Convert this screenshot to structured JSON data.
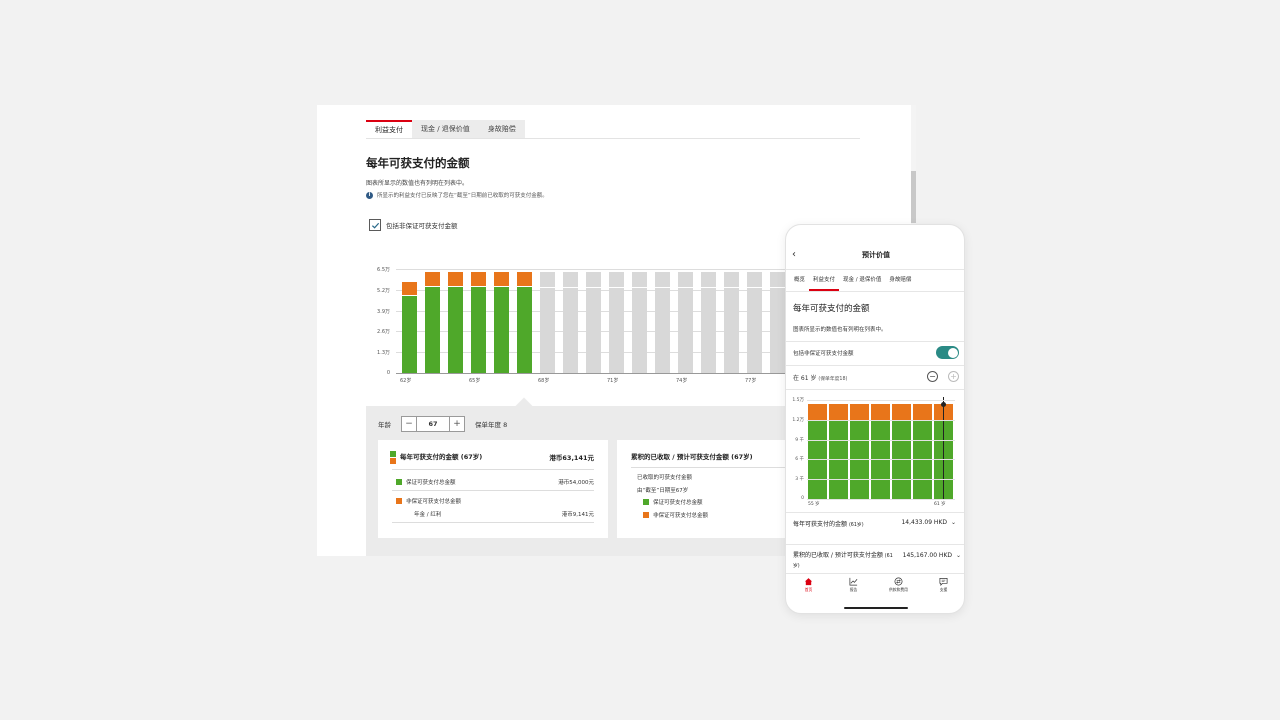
{
  "desktop": {
    "tabs": [
      "利益支付",
      "现金 / 退保价值",
      "身故赔偿"
    ],
    "title": "每年可获支付的金额",
    "subtitle": "图表所显示的数值也有列明在列表中。",
    "info": "所显示的利益支付已反映了您在“截至”日期前已收取的可获支付金额。",
    "checkbox_label": "包括非保证可获支付金额",
    "chart": {
      "y_ticks": [
        "6.5万",
        "5.2万",
        "3.9万",
        "2.6万",
        "1.3万",
        "0"
      ],
      "x_ticks": [
        "62岁",
        "65岁",
        "68岁",
        "71岁",
        "74岁",
        "77岁"
      ]
    },
    "age_label": "年龄",
    "age_value": "67",
    "policy_year": "保单年度 8",
    "card1": {
      "title": "每年可获支付的金额 (67岁)",
      "total": "港币63,141元",
      "guaranteed_label": "保证可获支付总金额",
      "guaranteed_value": "港币54,000元",
      "nonguaranteed_label": "非保证可获支付总金额",
      "annuity_label": "年金 / 红利",
      "annuity_value": "港币9,141元"
    },
    "card2": {
      "title": "累积的已收取 / 预计可获支付金额 (67岁)",
      "received_label": "已收取的可获支付金额",
      "until_label": "由“截至”日期至67岁",
      "guaranteed_label": "保证可获支付总金额",
      "nonguaranteed_label": "非保证可获支付总金额"
    }
  },
  "chart_data": [
    {
      "type": "bar",
      "stacked": true,
      "categories": [
        "62岁",
        "63岁",
        "64岁",
        "65岁",
        "66岁",
        "67岁",
        "68岁",
        "69岁",
        "70岁",
        "71岁",
        "72岁",
        "73岁",
        "74岁",
        "75岁",
        "76岁",
        "77岁",
        "78岁"
      ],
      "series": [
        {
          "name": "保证可获支付总金额",
          "values": [
            48000,
            54000,
            54000,
            54000,
            54000,
            54000,
            0,
            0,
            0,
            0,
            0,
            0,
            0,
            0,
            0,
            0,
            0
          ]
        },
        {
          "name": "非保证可获支付总金额",
          "values": [
            9000,
            9141,
            9141,
            9141,
            9141,
            9141,
            0,
            0,
            0,
            0,
            0,
            0,
            0,
            0,
            0,
            0,
            0
          ]
        },
        {
          "values": [
            0,
            0,
            0,
            0,
            0,
            0,
            63141,
            63141,
            63141,
            63141,
            63141,
            63141,
            63141,
            63141,
            63141,
            63141,
            63141
          ]
        }
      ],
      "ylim": [
        0,
        65000
      ],
      "colors": {
        "guaranteed": "#4fa82a",
        "nonguaranteed": "#e8751a",
        "future": "#d8d8d8"
      }
    },
    {
      "type": "bar",
      "stacked": true,
      "categories": [
        "55岁",
        "56岁",
        "57岁",
        "58岁",
        "59岁",
        "60岁",
        "61岁"
      ],
      "series": [
        {
          "values": [
            12000,
            12000,
            12000,
            12000,
            12000,
            12000,
            12000
          ]
        },
        {
          "values": [
            2433,
            2433,
            2433,
            2433,
            2433,
            2433,
            2433
          ]
        }
      ],
      "ylim": [
        0,
        15000
      ]
    }
  ],
  "phone": {
    "header": "预计价值",
    "tabs": [
      "概览",
      "利益支付",
      "现金 / 退保价值",
      "身故赔偿"
    ],
    "title": "每年可获支付的金额",
    "subtitle": "图表所显示的数值也有列明在列表中。",
    "toggle_label": "包括非保证可获支付金额",
    "age_text": "在 61 岁",
    "age_sub": "(保单年度18)",
    "y_ticks": [
      "1.5万",
      "1.2万",
      "9 千",
      "6 千",
      "3 千",
      "0"
    ],
    "x_ticks": [
      "55 岁",
      "61 岁"
    ],
    "row1_label": "每年可获支付的金额",
    "row1_sub": "(61岁)",
    "row1_value": "14,433.09 HKD",
    "row2_label": "累积的已收取 / 预计可获支付金额",
    "row2_sub": "(61岁)",
    "row2_value": "145,167.00 HKD",
    "nav": [
      "首页",
      "报告",
      "供款和费用",
      "支援"
    ]
  }
}
